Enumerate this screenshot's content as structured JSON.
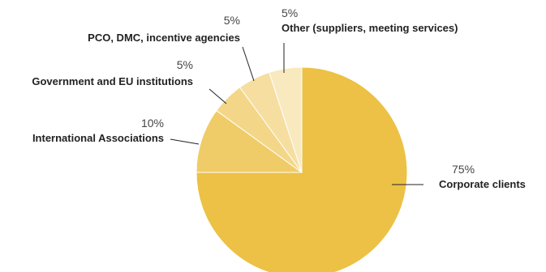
{
  "chart_data": {
    "type": "pie",
    "title": "",
    "start_angle_deg": 0,
    "direction": "clockwise",
    "slices": [
      {
        "label": "Corporate clients",
        "value": 75,
        "value_label": "75%",
        "color": "#ecc145"
      },
      {
        "label": "International Associations",
        "value": 10,
        "value_label": "10%",
        "color": "#f0cc68"
      },
      {
        "label": "Government and EU institutions",
        "value": 5,
        "value_label": "5%",
        "color": "#f3d687"
      },
      {
        "label": "PCO, DMC, incentive agencies",
        "value": 5,
        "value_label": "5%",
        "color": "#f5dea0"
      },
      {
        "label": "Other (suppliers, meeting services)",
        "value": 5,
        "value_label": "5%",
        "color": "#f8e9bf"
      }
    ]
  }
}
